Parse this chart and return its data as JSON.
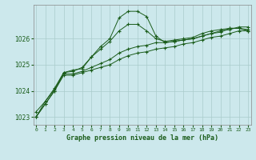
{
  "bg_color": "#cce8ec",
  "grid_color": "#aacccc",
  "line_color": "#1a5c1a",
  "title": "Graphe pression niveau de la mer (hPa)",
  "xlim": [
    -0.3,
    23.3
  ],
  "ylim": [
    1022.7,
    1027.3
  ],
  "yticks": [
    1023,
    1024,
    1025,
    1026
  ],
  "xticks": [
    0,
    1,
    2,
    3,
    4,
    5,
    6,
    7,
    8,
    9,
    10,
    11,
    12,
    13,
    14,
    15,
    16,
    17,
    18,
    19,
    20,
    21,
    22,
    23
  ],
  "series": [
    [
      1023.2,
      1023.6,
      1024.1,
      1024.7,
      1024.8,
      1024.85,
      1025.3,
      1025.6,
      1025.9,
      1026.3,
      1026.55,
      1026.55,
      1026.3,
      1026.0,
      1025.9,
      1025.95,
      1026.0,
      1026.05,
      1026.2,
      1026.3,
      1026.35,
      1026.4,
      1026.4,
      1026.35
    ],
    [
      1023.0,
      1023.6,
      1024.05,
      1024.7,
      1024.75,
      1024.9,
      1025.3,
      1025.7,
      1026.0,
      1026.8,
      1027.05,
      1027.05,
      1026.85,
      1026.1,
      1025.85,
      1025.9,
      1025.95,
      1026.0,
      1026.1,
      1026.2,
      1026.25,
      1026.4,
      1026.4,
      1026.3
    ],
    [
      1023.0,
      1023.5,
      1024.0,
      1024.65,
      1024.65,
      1024.75,
      1024.9,
      1025.05,
      1025.2,
      1025.45,
      1025.6,
      1025.7,
      1025.75,
      1025.85,
      1025.85,
      1025.9,
      1025.95,
      1026.0,
      1026.1,
      1026.2,
      1026.3,
      1026.35,
      1026.45,
      1026.45
    ],
    [
      1023.0,
      1023.5,
      1024.0,
      1024.6,
      1024.6,
      1024.7,
      1024.8,
      1024.9,
      1025.0,
      1025.2,
      1025.35,
      1025.45,
      1025.5,
      1025.6,
      1025.65,
      1025.7,
      1025.8,
      1025.85,
      1025.95,
      1026.05,
      1026.1,
      1026.2,
      1026.3,
      1026.3
    ]
  ]
}
